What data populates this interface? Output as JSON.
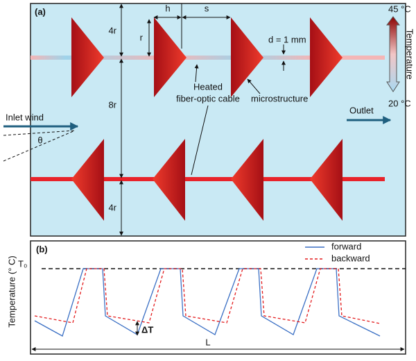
{
  "panel_a": {
    "label": "(a)",
    "dimensions": {
      "h": "h",
      "s": "s",
      "top_gap": "4r",
      "radius": "r",
      "diameter": "d = 1 mm",
      "spacing": "8r",
      "bottom_gap": "4r",
      "angle": "θ"
    },
    "annotations": {
      "cable": [
        "Heated",
        "fiber-optic cable"
      ],
      "microstructure": "microstructure",
      "inlet": "Inlet wind",
      "outlet": "Outlet"
    },
    "colorbar": {
      "max": "45 °C",
      "title": "Temperature",
      "min": "20 °C"
    }
  },
  "panel_b": {
    "label": "(b)",
    "y_axis_label": "Temperature (° C)",
    "reference": "T₀",
    "delta": "ΔT",
    "length": "L",
    "legend": [
      "forward",
      "backward"
    ]
  }
}
